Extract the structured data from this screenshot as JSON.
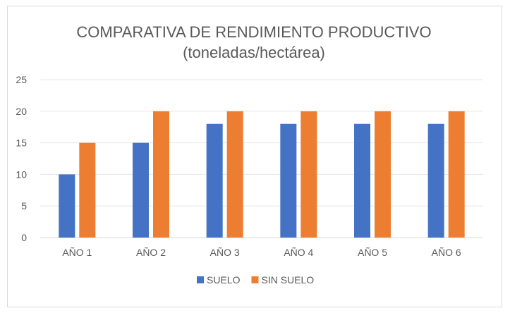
{
  "chart_data": {
    "type": "bar",
    "title": "COMPARATIVA DE RENDIMIENTO PRODUCTIVO",
    "subtitle": "(toneladas/hectárea)",
    "xlabel": "",
    "ylabel": "",
    "ylim": [
      0,
      25
    ],
    "yticks": [
      0,
      5,
      10,
      15,
      20,
      25
    ],
    "grid": true,
    "legend": "bottom",
    "categories": [
      "AÑO 1",
      "AÑO 2",
      "AÑO 3",
      "AÑO 4",
      "AÑO 5",
      "AÑO 6"
    ],
    "series": [
      {
        "name": "SUELO",
        "color": "#4472c4",
        "values": [
          10,
          15,
          18,
          18,
          18,
          18
        ]
      },
      {
        "name": "SIN SUELO",
        "color": "#ed7d31",
        "values": [
          15,
          20,
          20,
          20,
          20,
          20
        ]
      }
    ]
  }
}
